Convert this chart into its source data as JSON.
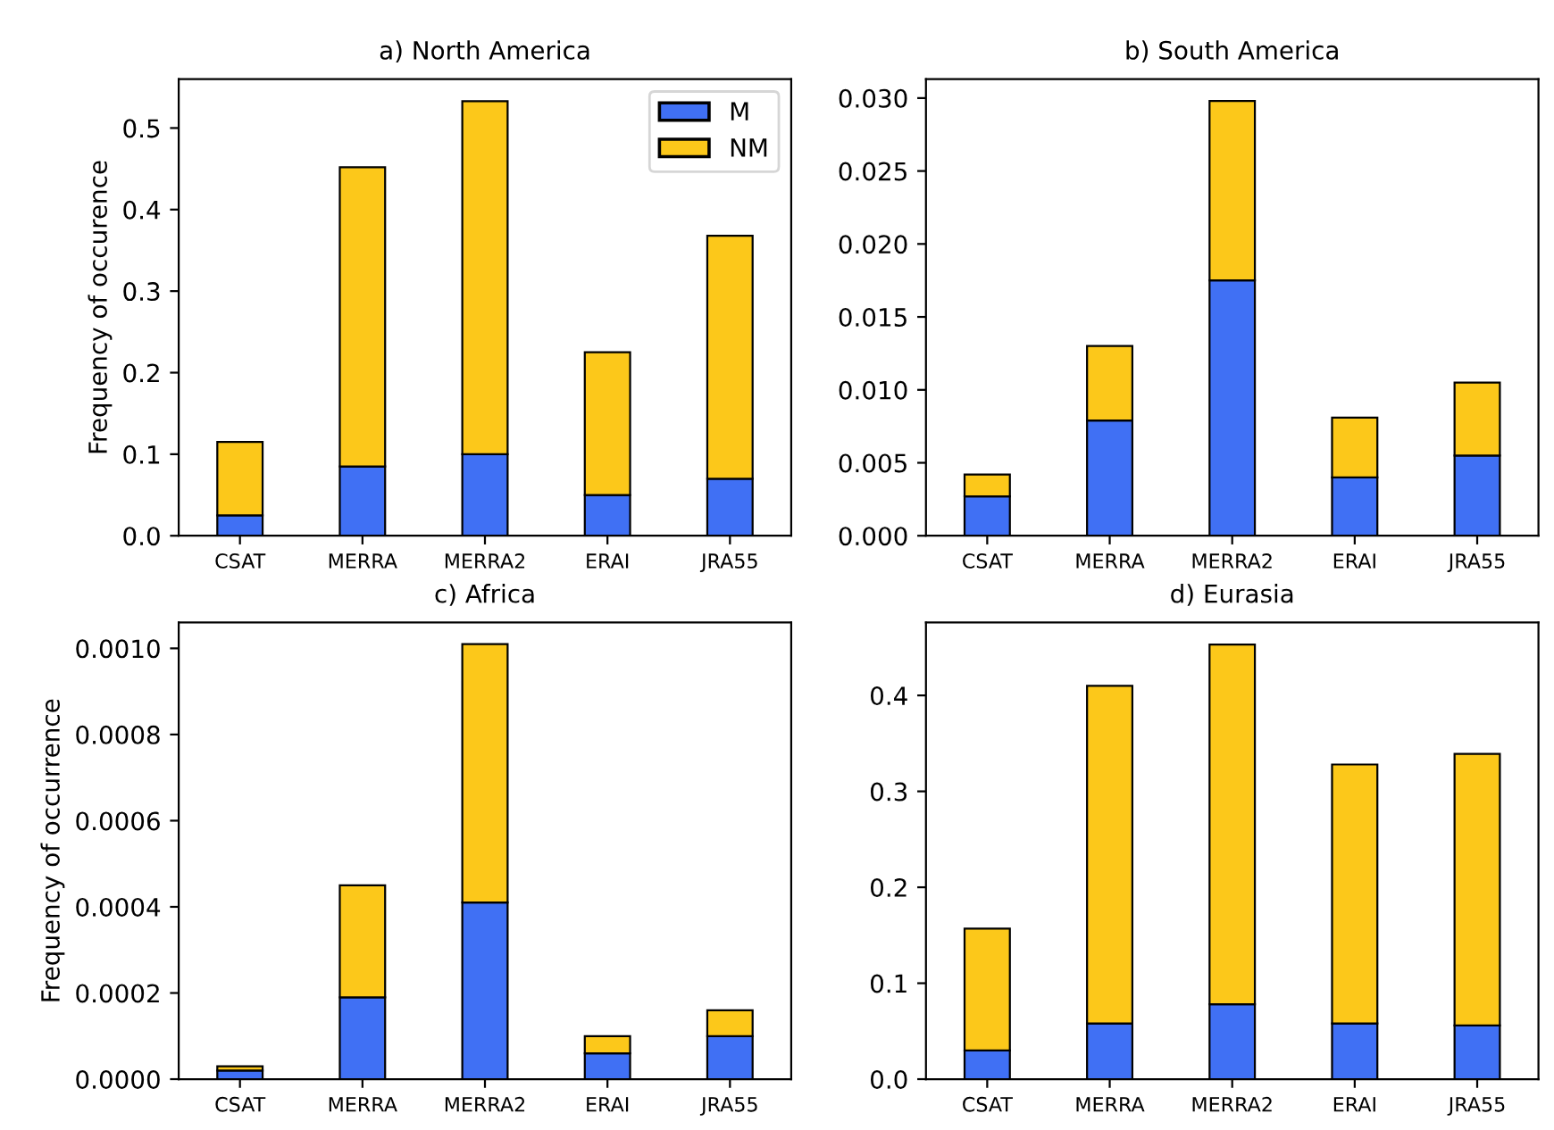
{
  "chart_data": [
    {
      "type": "bar",
      "stacked": true,
      "title": "a) North America",
      "ylabel": "Frequency of occurence",
      "legend": "top right",
      "categories": [
        "CSAT",
        "MERRA",
        "MERRA2",
        "ERAI",
        "JRA55"
      ],
      "series": [
        {
          "name": "M",
          "color": "#4070f4",
          "values": [
            0.025,
            0.085,
            0.1,
            0.05,
            0.07
          ]
        },
        {
          "name": "NM",
          "color": "#fcc81a",
          "values": [
            0.09,
            0.367,
            0.433,
            0.175,
            0.298
          ]
        }
      ],
      "ylim": [
        0,
        0.56
      ],
      "yticks": [
        {
          "value": 0,
          "label": "0.0"
        },
        {
          "value": 0.1,
          "label": "0.1"
        },
        {
          "value": 0.2,
          "label": "0.2"
        },
        {
          "value": 0.3,
          "label": "0.3"
        },
        {
          "value": 0.4,
          "label": "0.4"
        },
        {
          "value": 0.5,
          "label": "0.5"
        }
      ]
    },
    {
      "type": "bar",
      "stacked": true,
      "title": "b) South America",
      "categories": [
        "CSAT",
        "MERRA",
        "MERRA2",
        "ERAI",
        "JRA55"
      ],
      "series": [
        {
          "color": "#4070f4",
          "values": [
            0.0027,
            0.0079,
            0.0175,
            0.004,
            0.0055
          ]
        },
        {
          "color": "#fcc81a",
          "values": [
            0.0015,
            0.0051,
            0.0123,
            0.0041,
            0.005
          ]
        }
      ],
      "ylim": [
        0,
        0.0313
      ],
      "yticks": [
        {
          "value": 0,
          "label": "0.000"
        },
        {
          "value": 0.005,
          "label": "0.005"
        },
        {
          "value": 0.01,
          "label": "0.010"
        },
        {
          "value": 0.015,
          "label": "0.015"
        },
        {
          "value": 0.02,
          "label": "0.020"
        },
        {
          "value": 0.025,
          "label": "0.025"
        },
        {
          "value": 0.03,
          "label": "0.030"
        }
      ]
    },
    {
      "type": "bar",
      "stacked": true,
      "title": "c) Africa",
      "ylabel": "Frequency of occurrence",
      "categories": [
        "CSAT",
        "MERRA",
        "MERRA2",
        "ERAI",
        "JRA55"
      ],
      "series": [
        {
          "color": "#4070f4",
          "values": [
            2e-05,
            0.00019,
            0.00041,
            6e-05,
            0.0001
          ]
        },
        {
          "color": "#fcc81a",
          "values": [
            1e-05,
            0.00026,
            0.0006,
            4e-05,
            6e-05
          ]
        }
      ],
      "ylim": [
        0,
        0.00106
      ],
      "yticks": [
        {
          "value": 0,
          "label": "0.0000"
        },
        {
          "value": 0.0002,
          "label": "0.0002"
        },
        {
          "value": 0.0004,
          "label": "0.0004"
        },
        {
          "value": 0.0006,
          "label": "0.0006"
        },
        {
          "value": 0.0008,
          "label": "0.0008"
        },
        {
          "value": 0.001,
          "label": "0.0010"
        }
      ]
    },
    {
      "type": "bar",
      "stacked": true,
      "title": "d) Eurasia",
      "categories": [
        "CSAT",
        "MERRA",
        "MERRA2",
        "ERAI",
        "JRA55"
      ],
      "series": [
        {
          "color": "#4070f4",
          "values": [
            0.03,
            0.058,
            0.078,
            0.058,
            0.056
          ]
        },
        {
          "color": "#fcc81a",
          "values": [
            0.127,
            0.352,
            0.375,
            0.27,
            0.283
          ]
        }
      ],
      "ylim": [
        0,
        0.476
      ],
      "yticks": [
        {
          "value": 0,
          "label": "0.0"
        },
        {
          "value": 0.1,
          "label": "0.1"
        },
        {
          "value": 0.2,
          "label": "0.2"
        },
        {
          "value": 0.3,
          "label": "0.3"
        },
        {
          "value": 0.4,
          "label": "0.4"
        }
      ]
    }
  ]
}
